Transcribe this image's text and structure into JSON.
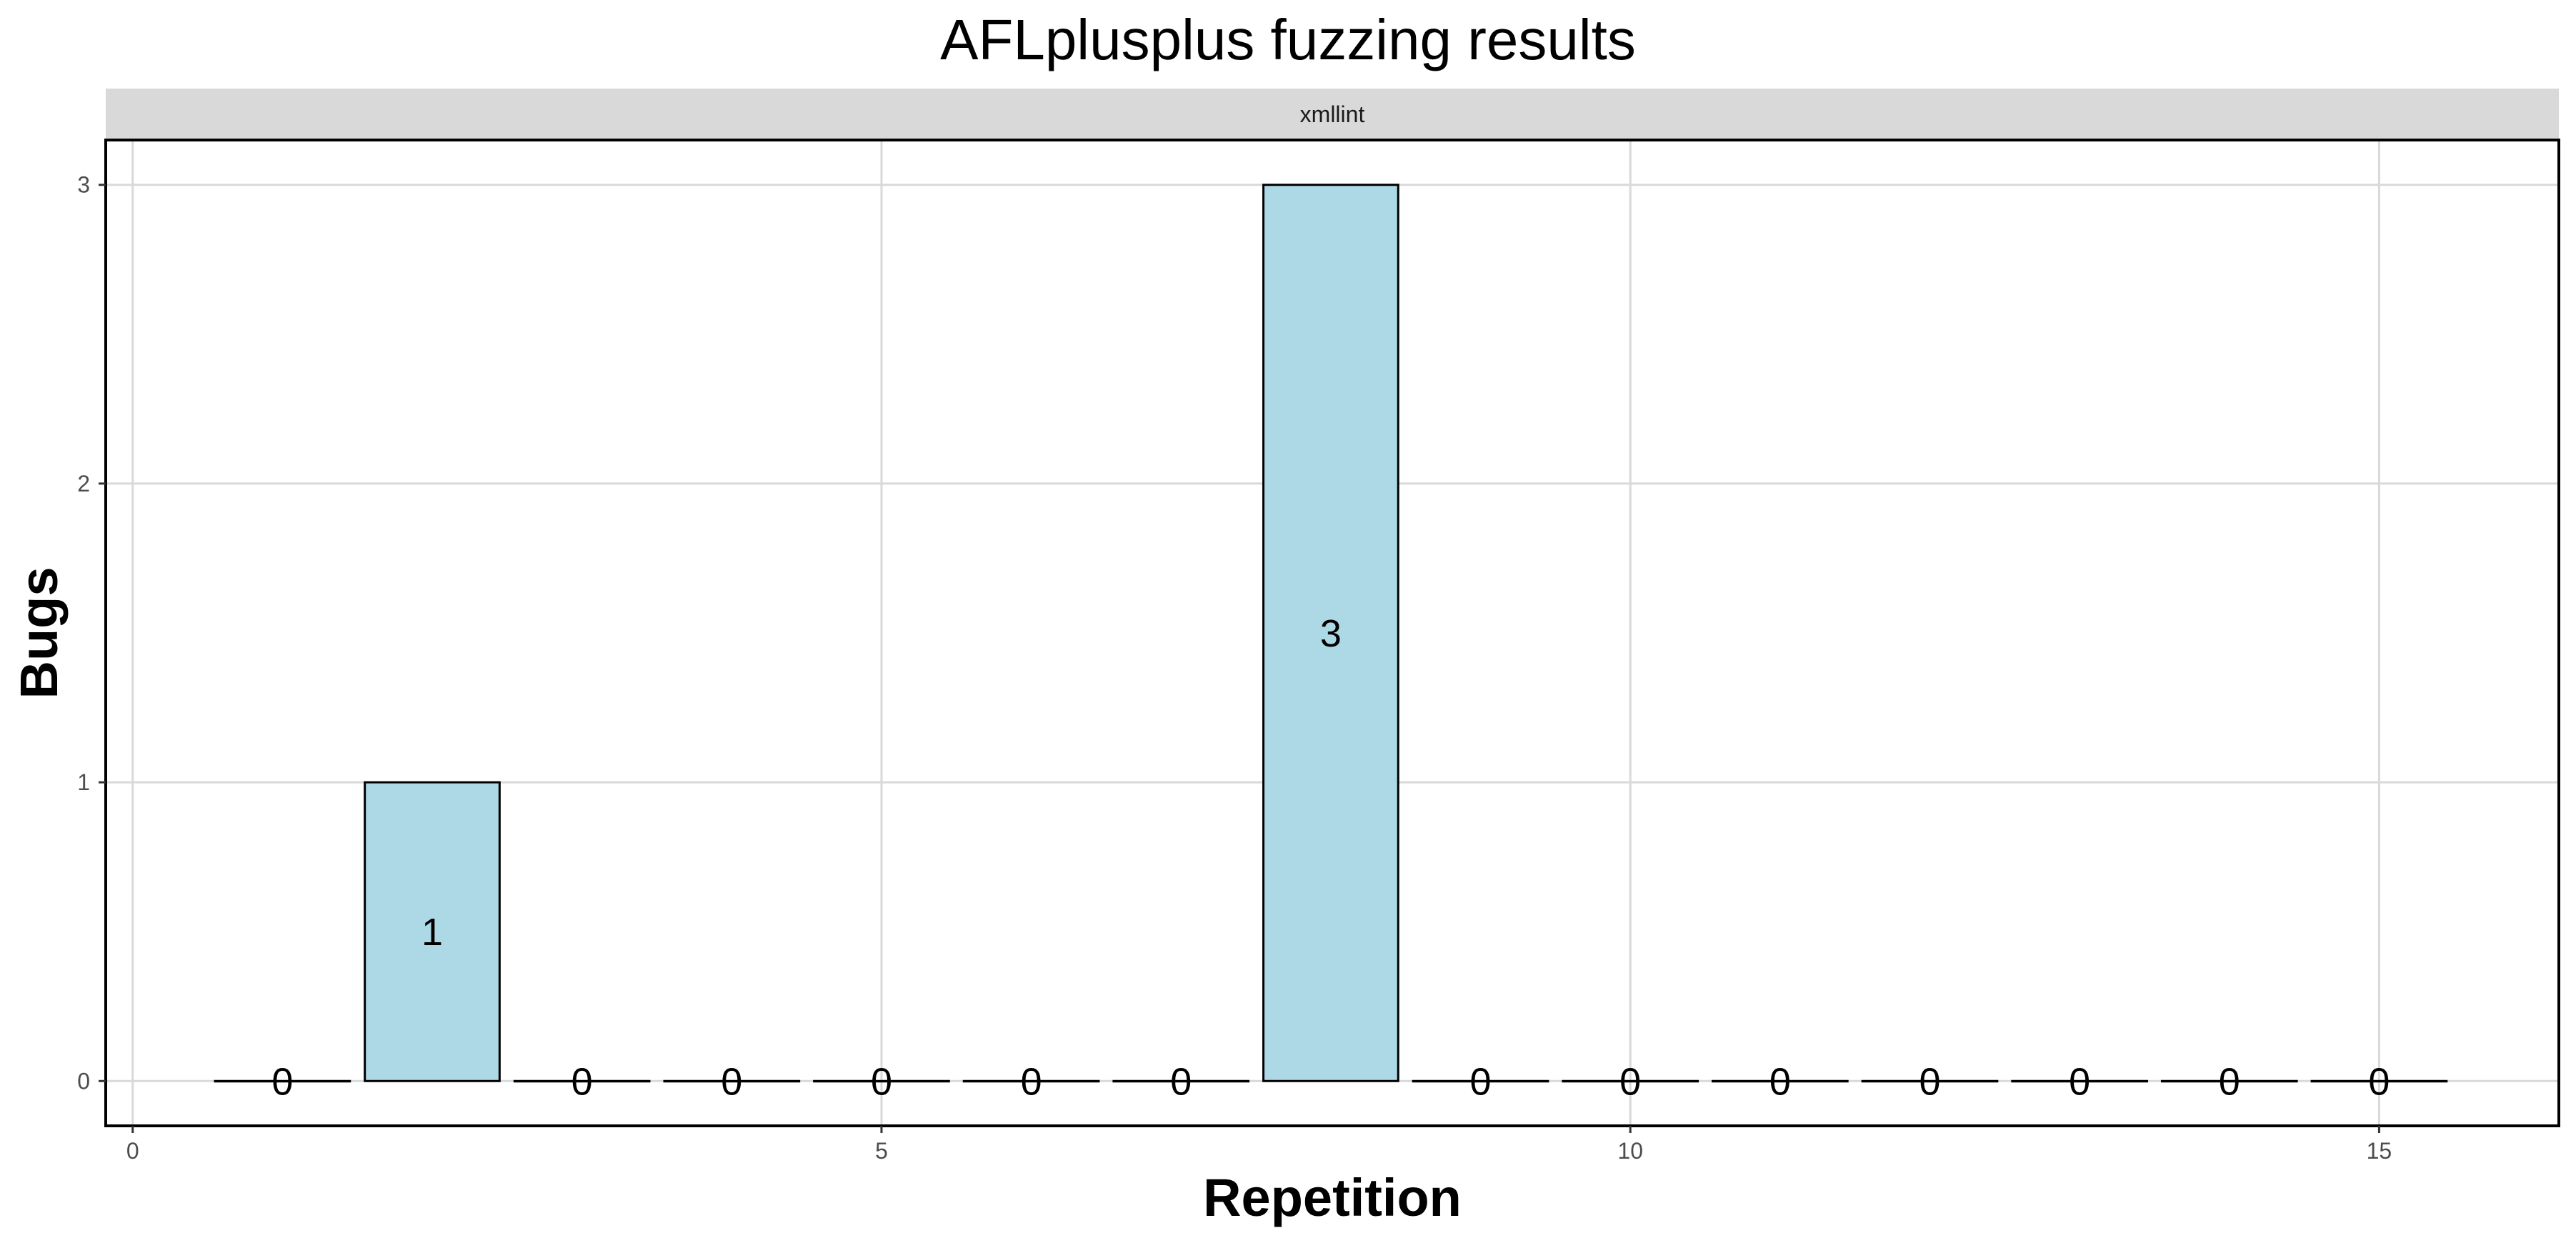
{
  "chart_data": {
    "type": "bar",
    "title": "AFLplusplus fuzzing results",
    "facet_label": "xmllint",
    "xlabel": "Repetition",
    "ylabel": "Bugs",
    "x": [
      1,
      2,
      3,
      4,
      5,
      6,
      7,
      8,
      9,
      10,
      11,
      12,
      13,
      14,
      15
    ],
    "values": [
      0,
      1,
      0,
      0,
      0,
      0,
      0,
      3,
      0,
      0,
      0,
      0,
      0,
      0,
      0
    ],
    "data_labels": [
      "0",
      "1",
      "0",
      "0",
      "0",
      "0",
      "0",
      "3",
      "0",
      "0",
      "0",
      "0",
      "0",
      "0",
      "0"
    ],
    "xlim": [
      -0.18,
      16.2
    ],
    "ylim": [
      -0.15,
      3.15
    ],
    "x_ticks": [
      0,
      5,
      10,
      15
    ],
    "x_tick_labels": [
      "0",
      "5",
      "10",
      "15"
    ],
    "y_ticks": [
      0,
      1,
      2,
      3
    ],
    "y_tick_labels": [
      "0",
      "1",
      "2",
      "3"
    ],
    "grid": true,
    "colors": {
      "bar_fill": "#add8e6",
      "bar_stroke": "#000000",
      "grid": "#d9d9d9",
      "strip": "#d9d9d9"
    }
  }
}
